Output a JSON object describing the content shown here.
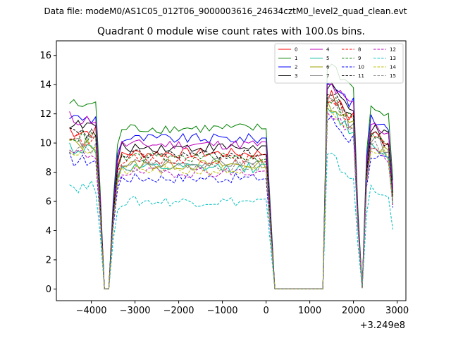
{
  "suptitle": "Data file: modeM0/AS1C05_012T06_9000003616_24634cztM0_level2_quad_clean.evt",
  "chart_data": {
    "type": "line",
    "title": "Quadrant 0 module wise count rates with 100.0s bins.",
    "xlabel": "",
    "ylabel": "",
    "x_offset_label": "+3.249e8",
    "xlim": [
      -4800,
      3200
    ],
    "ylim": [
      -0.8,
      17.0
    ],
    "xticks": [
      -4000,
      -3000,
      -2000,
      -1000,
      0,
      1000,
      2000,
      3000
    ],
    "xtick_labels": [
      "−4000",
      "−3000",
      "−2000",
      "−1000",
      "0",
      "1000",
      "2000",
      "3000"
    ],
    "yticks": [
      0,
      2,
      4,
      6,
      8,
      10,
      12,
      14,
      16
    ],
    "ytick_labels": [
      "0",
      "2",
      "4",
      "6",
      "8",
      "10",
      "12",
      "14",
      "16"
    ],
    "legend_position": "top-right",
    "legend_columns": 4,
    "segments": [
      {
        "start": -4500,
        "end": -3900,
        "gap_scale": 1.0
      },
      {
        "start": -3800,
        "end": -3600,
        "drop": true
      },
      {
        "start": -3500,
        "end": 0,
        "gap_scale": 1.0
      },
      {
        "start": 200,
        "end": 1300,
        "off": true
      },
      {
        "start": 1400,
        "end": 2000,
        "gap_scale": 1.0
      },
      {
        "start": 2200,
        "end": 2200,
        "drop": true
      },
      {
        "start": 2300,
        "end": 2900,
        "gap_scale": 1.0
      }
    ],
    "series": [
      {
        "name": "0",
        "color": "#ff0000",
        "dashed": false,
        "levels": {
          "pre": 10.8,
          "mid": 9.3,
          "post1": 13.2,
          "post2": 10.7
        }
      },
      {
        "name": "1",
        "color": "#008000",
        "dashed": false,
        "levels": {
          "pre": 12.6,
          "mid": 11.0,
          "post1": 15.3,
          "post2": 12.4
        }
      },
      {
        "name": "2",
        "color": "#0000ff",
        "dashed": false,
        "levels": {
          "pre": 11.7,
          "mid": 10.3,
          "post1": 14.2,
          "post2": 11.6
        }
      },
      {
        "name": "3",
        "color": "#000000",
        "dashed": false,
        "levels": {
          "pre": 11.2,
          "mid": 9.7,
          "post1": 13.7,
          "post2": 11.0
        }
      },
      {
        "name": "4",
        "color": "#bf00bf",
        "dashed": false,
        "levels": {
          "pre": 11.6,
          "mid": 9.9,
          "post1": 13.9,
          "post2": 11.3
        }
      },
      {
        "name": "5",
        "color": "#00bfa0",
        "dashed": false,
        "levels": {
          "pre": 9.6,
          "mid": 8.3,
          "post1": 12.2,
          "post2": 9.8
        }
      },
      {
        "name": "6",
        "color": "#a0a000",
        "dashed": false,
        "levels": {
          "pre": 9.9,
          "mid": 8.5,
          "post1": 12.6,
          "post2": 10.0
        }
      },
      {
        "name": "7",
        "color": "#808080",
        "dashed": false,
        "levels": {
          "pre": 10.1,
          "mid": 8.6,
          "post1": 12.8,
          "post2": 10.2
        }
      },
      {
        "name": "8",
        "color": "#ff0000",
        "dashed": true,
        "levels": {
          "pre": 10.3,
          "mid": 8.9,
          "post1": 13.0,
          "post2": 10.4
        }
      },
      {
        "name": "9",
        "color": "#008000",
        "dashed": true,
        "levels": {
          "pre": 10.4,
          "mid": 9.0,
          "post1": 13.1,
          "post2": 10.5
        }
      },
      {
        "name": "10",
        "color": "#0000ff",
        "dashed": true,
        "levels": {
          "pre": 8.8,
          "mid": 7.6,
          "post1": 11.6,
          "post2": 9.3
        }
      },
      {
        "name": "11",
        "color": "#000000",
        "dashed": true,
        "levels": {
          "pre": 10.6,
          "mid": 9.2,
          "post1": 13.3,
          "post2": 10.6
        }
      },
      {
        "name": "12",
        "color": "#bf00bf",
        "dashed": true,
        "levels": {
          "pre": 9.2,
          "mid": 8.0,
          "post1": 12.0,
          "post2": 9.6
        }
      },
      {
        "name": "13",
        "color": "#00bfbf",
        "dashed": true,
        "levels": {
          "pre": 7.0,
          "mid": 6.0,
          "post1": 9.0,
          "post2": 6.8
        }
      },
      {
        "name": "14",
        "color": "#bfbf00",
        "dashed": true,
        "levels": {
          "pre": 9.4,
          "mid": 8.1,
          "post1": 12.1,
          "post2": 9.7
        }
      },
      {
        "name": "15",
        "color": "#808080",
        "dashed": true,
        "levels": {
          "pre": 9.7,
          "mid": 8.4,
          "post1": 12.5,
          "post2": 9.9
        }
      }
    ]
  }
}
